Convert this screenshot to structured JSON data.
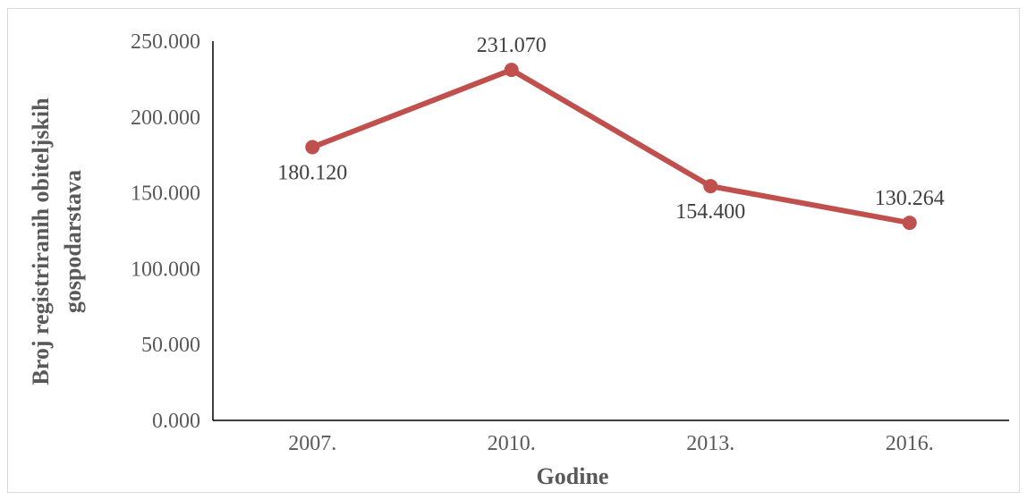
{
  "chart_data": {
    "type": "line",
    "categories": [
      "2007.",
      "2010.",
      "2013.",
      "2016."
    ],
    "series": [
      {
        "values": [
          180120,
          231070,
          154400,
          130264
        ],
        "labels": [
          "180.120",
          "231.070",
          "154.400",
          "130.264"
        ],
        "label_positions": [
          "below",
          "above",
          "below",
          "above"
        ],
        "color": "#c0504d"
      }
    ],
    "xlabel": "Godine",
    "ylabel_lines": [
      "Broj registriranih obiteljskih",
      "gospodarstava"
    ],
    "ylim": [
      0,
      250000
    ],
    "y_ticks": [
      0,
      50000,
      100000,
      150000,
      200000,
      250000
    ],
    "y_tick_labels": [
      "0.000",
      "50.000",
      "100.000",
      "150.000",
      "200.000",
      "250.000"
    ],
    "grid": false,
    "legend": "none"
  }
}
